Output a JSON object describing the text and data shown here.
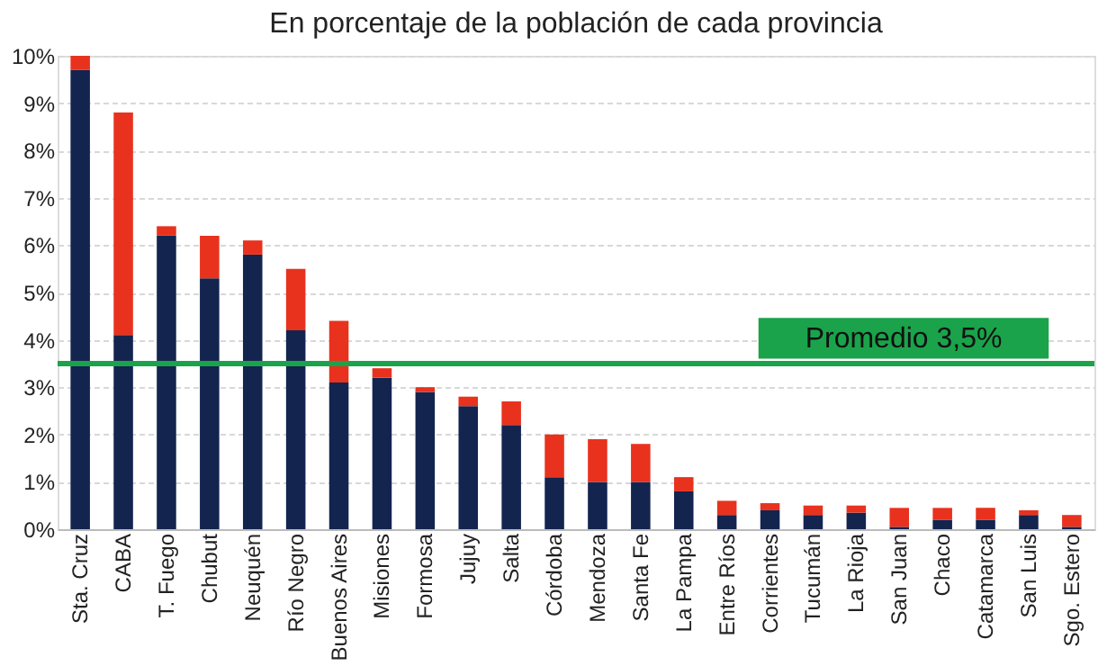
{
  "chart_data": {
    "type": "bar",
    "stacked": true,
    "title": "En porcentaje de la población de cada provincia",
    "categories": [
      "Sta. Cruz",
      "CABA",
      "T. Fuego",
      "Chubut",
      "Neuquén",
      "Río Negro",
      "Buenos Aires",
      "Misiones",
      "Formosa",
      "Jujuy",
      "Salta",
      "Córdoba",
      "Mendoza",
      "Santa Fe",
      "La Pampa",
      "Entre Ríos",
      "Corrientes",
      "Tucumán",
      "La Rioja",
      "San Juan",
      "Chaco",
      "Catamarca",
      "San Luis",
      "Sgo. Estero"
    ],
    "series": [
      {
        "color": "#13244f",
        "values": [
          9.7,
          4.1,
          6.2,
          5.3,
          5.8,
          4.2,
          3.1,
          3.2,
          2.9,
          2.6,
          2.2,
          1.1,
          1.0,
          1.0,
          0.8,
          0.3,
          0.4,
          0.3,
          0.35,
          0.05,
          0.2,
          0.2,
          0.3,
          0.05
        ]
      },
      {
        "color": "#e8321e",
        "values": [
          0.3,
          4.7,
          0.2,
          0.9,
          0.3,
          1.3,
          1.3,
          0.2,
          0.1,
          0.2,
          0.5,
          0.9,
          0.9,
          0.8,
          0.3,
          0.3,
          0.15,
          0.2,
          0.15,
          0.4,
          0.25,
          0.25,
          0.1,
          0.25
        ]
      }
    ],
    "ylim": [
      0,
      10
    ],
    "yticks": [
      {
        "value": 0,
        "label": "0%"
      },
      {
        "value": 1,
        "label": "1%"
      },
      {
        "value": 2,
        "label": "2%"
      },
      {
        "value": 3,
        "label": "3%"
      },
      {
        "value": 4,
        "label": "4%"
      },
      {
        "value": 5,
        "label": "5%"
      },
      {
        "value": 6,
        "label": "6%"
      },
      {
        "value": 7,
        "label": "7%"
      },
      {
        "value": 8,
        "label": "8%"
      },
      {
        "value": 9,
        "label": "9%"
      },
      {
        "value": 10,
        "label": "10%"
      }
    ],
    "grid": "y",
    "legend": false,
    "ref_lines": [
      {
        "axis": "y",
        "value": 3.5,
        "label": "Promedio 3,5%",
        "color": "#1aa34a"
      }
    ]
  }
}
